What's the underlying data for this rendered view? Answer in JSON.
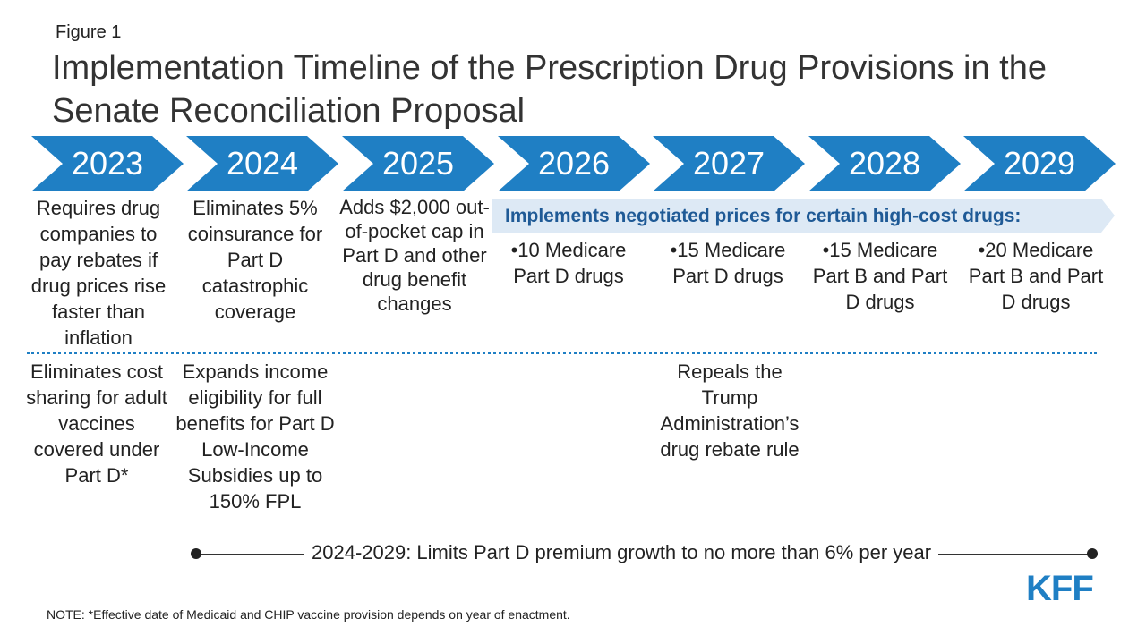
{
  "figure_label": "Figure 1",
  "title": "Implementation Timeline of the Prescription Drug Provisions in the Senate Reconciliation Proposal",
  "years": [
    "2023",
    "2024",
    "2025",
    "2026",
    "2027",
    "2028",
    "2029"
  ],
  "provisions_top": {
    "y2023": "Requires drug companies to pay rebates if drug prices rise faster than inflation",
    "y2024": "Eliminates 5% coinsurance for Part D catastrophic coverage",
    "y2025": "Adds $2,000 out-of-pocket cap in Part D and other drug benefit changes"
  },
  "negotiation": {
    "header": "Implements negotiated prices for certain high-cost drugs:",
    "items": [
      "•10 Medicare Part D drugs",
      "•15 Medicare Part D drugs",
      "•15 Medicare Part B and Part D drugs",
      "•20 Medicare Part B and Part D drugs"
    ]
  },
  "provisions_bottom": {
    "y2023": "Eliminates cost sharing for adult vaccines covered under Part D*",
    "y2024": "Expands income eligibility for full benefits for Part D Low-Income Subsidies up to 150% FPL",
    "y2027": "Repeals the Trump Administration’s drug rebate rule"
  },
  "premium_growth": "2024-2029: Limits Part D premium growth to no more than 6% per year",
  "note": "NOTE: *Effective date of Medicaid and CHIP vaccine provision depends on year of enactment.",
  "logo_text": "KFF",
  "colors": {
    "chevron": "#1f7fc4",
    "banner": "#dde9f5",
    "banner_text": "#1f5a96",
    "divider": "#1f7fc4"
  }
}
